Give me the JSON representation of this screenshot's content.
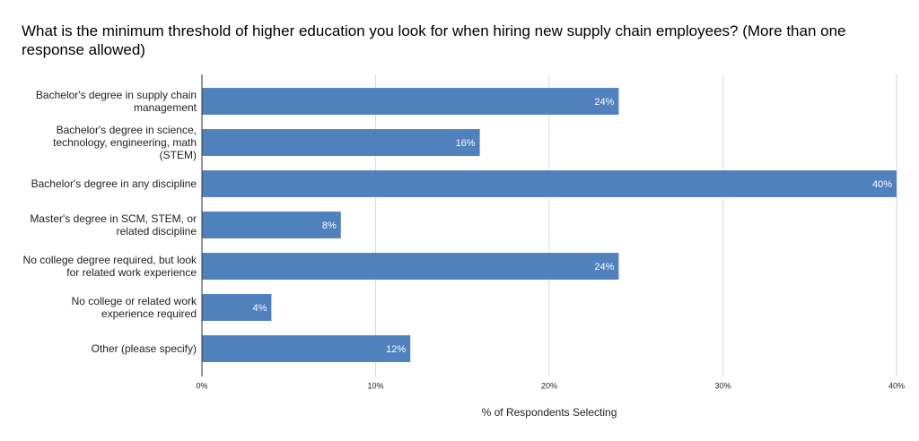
{
  "chart_data": {
    "type": "bar",
    "orientation": "horizontal",
    "title": "What is the minimum threshold of higher education you look for when hiring new supply chain employees? (More than one response allowed)",
    "x_label": "% of Respondents Selecting",
    "categories": [
      "Bachelor's degree in supply chain management",
      "Bachelor's degree in science, technology, engineering, math (STEM)",
      "Bachelor's degree in any discipline",
      "Master's degree in SCM, STEM, or related discipline",
      "No college degree required, but look for related work experience",
      "No college or related work experience required",
      "Other (please specify)"
    ],
    "values": [
      24,
      16,
      40,
      8,
      24,
      4,
      12
    ],
    "value_labels": [
      "24%",
      "16%",
      "40%",
      "8%",
      "24%",
      "4%",
      "12%"
    ],
    "color": "#4f81bd",
    "xlim": [
      0,
      40
    ],
    "xticks": [
      {
        "value": 0,
        "label": "0%"
      },
      {
        "value": 10,
        "label": "10%"
      },
      {
        "value": 20,
        "label": "20%"
      },
      {
        "value": 30,
        "label": "30%"
      },
      {
        "value": 40,
        "label": "40%"
      }
    ],
    "grid": true
  }
}
